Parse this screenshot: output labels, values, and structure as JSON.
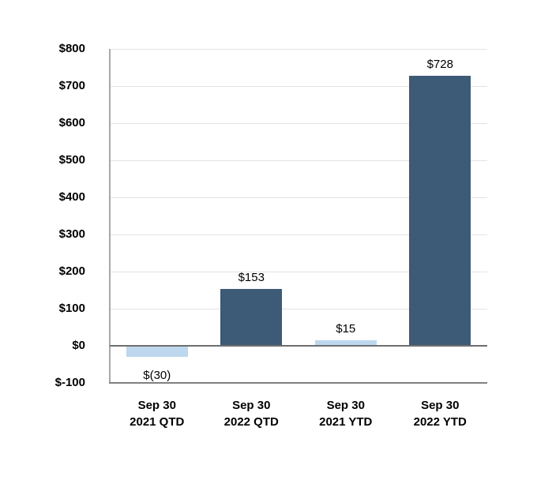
{
  "chart_data": {
    "type": "bar",
    "title": "",
    "categories": [
      [
        "Sep 30",
        "2021 QTD"
      ],
      [
        "Sep 30",
        "2022 QTD"
      ],
      [
        "Sep 30",
        "2021 YTD"
      ],
      [
        "Sep 30",
        "2022 YTD"
      ]
    ],
    "values": [
      -30,
      153,
      15,
      728
    ],
    "data_labels": [
      "$(30)",
      "$153",
      "$15",
      "$728"
    ],
    "bar_colors": [
      "#BDD7EE",
      "#3D5A77",
      "#BDD7EE",
      "#3D5A77"
    ],
    "y_ticks": [
      {
        "value": 800,
        "label": "$800"
      },
      {
        "value": 700,
        "label": "$700"
      },
      {
        "value": 600,
        "label": "$600"
      },
      {
        "value": 500,
        "label": "$500"
      },
      {
        "value": 400,
        "label": "$400"
      },
      {
        "value": 300,
        "label": "$300"
      },
      {
        "value": 200,
        "label": "$200"
      },
      {
        "value": 100,
        "label": "$100"
      },
      {
        "value": 0,
        "label": "$0"
      },
      {
        "value": -100,
        "label": "$-100"
      }
    ],
    "ylim": [
      -100,
      800
    ],
    "xlabel": "",
    "ylabel": "",
    "grid": true,
    "legend": "none",
    "colors": {
      "bar_dark": "#3D5A77",
      "bar_light": "#BDD7EE",
      "gridline": "#E3E3E3",
      "zero_line": "#6E6E6E",
      "axis_line": "#808080",
      "text": "#000000",
      "background": "#FFFFFF"
    }
  }
}
